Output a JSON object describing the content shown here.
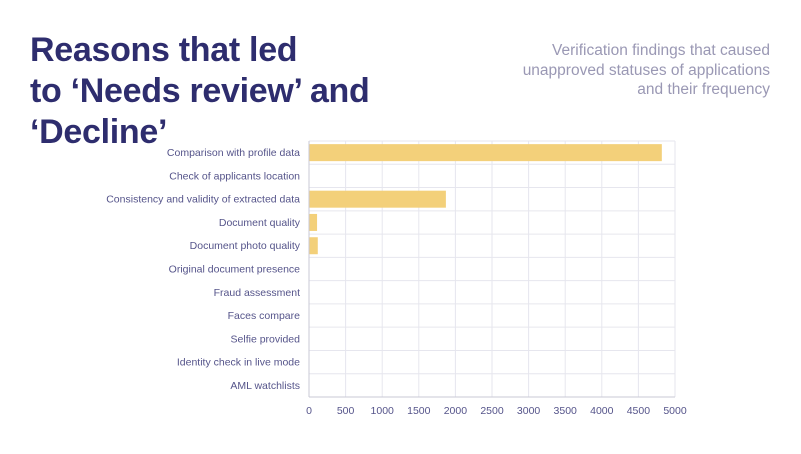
{
  "header": {
    "title_line1": "Reasons that led",
    "title_line2": "to ‘Needs review’ and ‘Decline’",
    "subtitle_line1": "Verification findings that caused",
    "subtitle_line2": "unapproved statuses of applications",
    "subtitle_line3": "and their frequency"
  },
  "colors": {
    "bar": "#f3d07a",
    "grid": "#e6e6ee",
    "axis": "#c9c9d6",
    "title": "#2e2d6e",
    "subtitle": "#9a98b4",
    "label": "#55548a"
  },
  "chart_data": {
    "type": "bar",
    "orientation": "horizontal",
    "title": "",
    "xlabel": "",
    "ylabel": "",
    "categories": [
      "Comparison with profile data",
      "Check of applicants location",
      "Consistency and validity of extracted data",
      "Document quality",
      "Document photo quality",
      "Original document presence",
      "Fraud assessment",
      "Faces compare",
      "Selfie provided",
      "Identity check in live mode",
      "AML watchlists"
    ],
    "values": [
      4820,
      0,
      1870,
      110,
      120,
      0,
      0,
      0,
      0,
      0,
      0
    ],
    "xlim": [
      0,
      5000
    ],
    "xticks": [
      0,
      500,
      1000,
      1500,
      2000,
      2500,
      3000,
      3500,
      4000,
      4500,
      5000
    ],
    "grid": true,
    "legend": "none"
  }
}
